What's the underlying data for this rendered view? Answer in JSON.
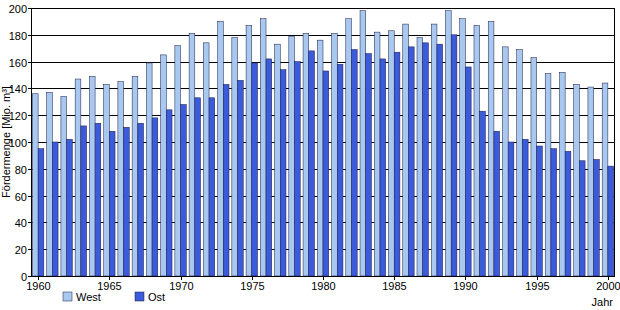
{
  "chart_data": {
    "type": "bar",
    "y_label": "Fördermenge [Mio. m³]",
    "x_label": "Jahr",
    "x": [
      1960,
      1961,
      1962,
      1963,
      1964,
      1965,
      1966,
      1967,
      1968,
      1969,
      1970,
      1971,
      1972,
      1973,
      1974,
      1975,
      1976,
      1977,
      1978,
      1979,
      1980,
      1981,
      1982,
      1983,
      1984,
      1985,
      1986,
      1987,
      1988,
      1989,
      1990,
      1991,
      1992,
      1993,
      1994,
      1995,
      1996,
      1997,
      1998,
      1999,
      2000
    ],
    "series": [
      {
        "name": "West",
        "color": "#a8c8f0",
        "values": [
          136,
          137,
          134,
          147,
          149,
          143,
          145,
          149,
          159,
          165,
          172,
          181,
          174,
          190,
          178,
          187,
          192,
          173,
          179,
          181,
          176,
          181,
          192,
          198,
          182,
          183,
          188,
          178,
          188,
          198,
          192,
          187,
          190,
          171,
          169,
          163,
          151,
          152,
          143,
          141,
          144
        ]
      },
      {
        "name": "Ost",
        "color": "#3b5bdb",
        "values": [
          95,
          100,
          102,
          112,
          114,
          108,
          111,
          114,
          118,
          124,
          128,
          133,
          133,
          143,
          146,
          159,
          162,
          154,
          160,
          168,
          153,
          158,
          169,
          166,
          162,
          167,
          171,
          174,
          173,
          180,
          156,
          123,
          108,
          100,
          102,
          97,
          95,
          93,
          86,
          87,
          82
        ]
      }
    ],
    "xlim": [
      1959.5,
      2000.5
    ],
    "xticks": [
      1960,
      1965,
      1970,
      1975,
      1980,
      1985,
      1990,
      1995,
      2000
    ],
    "ylim": [
      0,
      200
    ],
    "yticks": [
      0,
      20,
      40,
      60,
      80,
      100,
      120,
      140,
      160,
      180,
      200
    ],
    "grid": true,
    "legend": "bottom"
  }
}
